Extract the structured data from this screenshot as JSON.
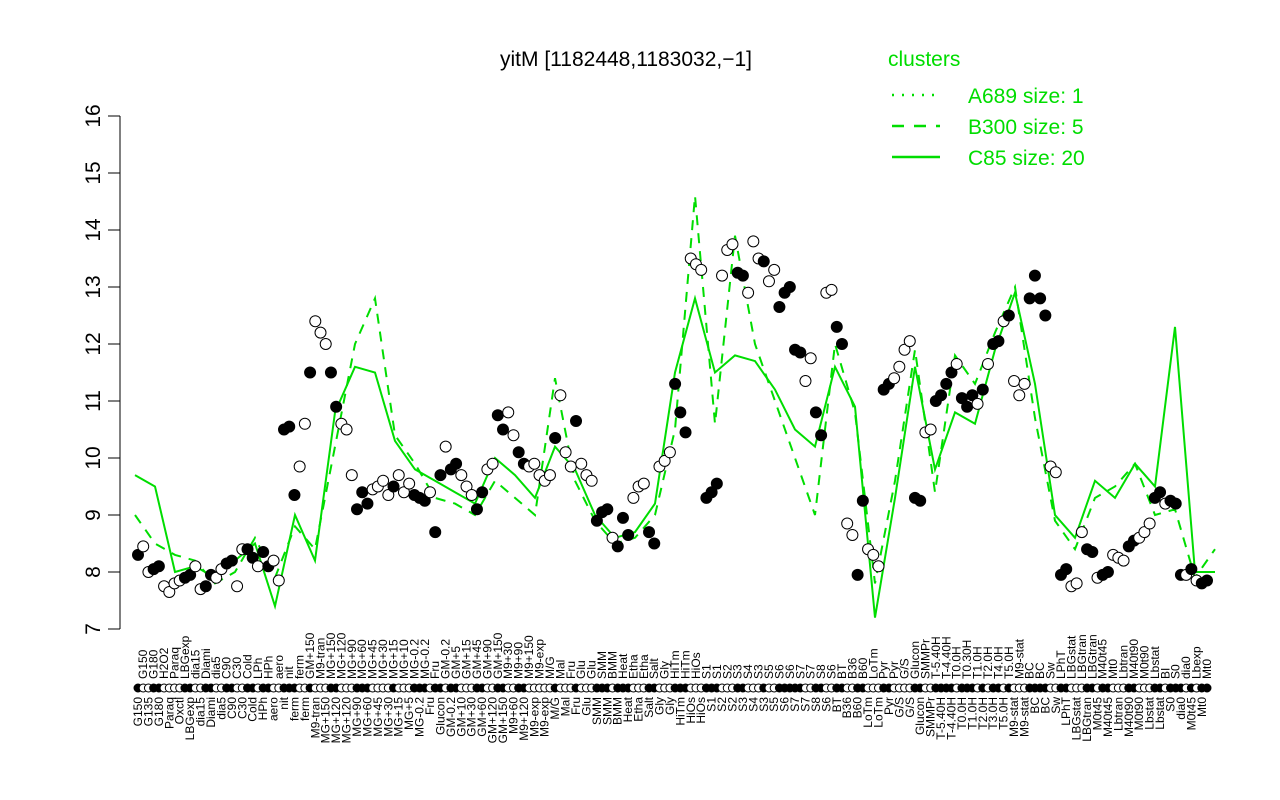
{
  "chart_data": {
    "type": "line",
    "title": "yitM [1182448,1183032,−1]",
    "xlabel": "",
    "ylabel": "",
    "ylim": [
      7,
      16
    ],
    "yticks": [
      7,
      8,
      9,
      10,
      11,
      12,
      13,
      14,
      15,
      16
    ],
    "grid": false,
    "legend": {
      "title": "clusters",
      "placement": "top-right",
      "entries": [
        {
          "name": "A689 size: 1",
          "style": "dotted"
        },
        {
          "name": "B300 size: 5",
          "style": "dashed"
        },
        {
          "name": "C85 size: 20",
          "style": "solid"
        }
      ]
    },
    "color": "#00dd00",
    "points": [
      [
        "G150",
        8.3,
        1
      ],
      [
        "G150",
        8.45,
        0
      ],
      [
        "G135",
        8.0,
        0
      ],
      [
        "G180",
        8.05,
        1
      ],
      [
        "G180",
        8.1,
        1
      ],
      [
        "H2O2",
        7.75,
        0
      ],
      [
        "Paraq",
        7.65,
        0
      ],
      [
        "Paraq",
        7.8,
        0
      ],
      [
        "Oxctl",
        7.85,
        0
      ],
      [
        "LBGexp",
        7.9,
        1
      ],
      [
        "LBGexp",
        7.95,
        1
      ],
      [
        "dia15",
        8.1,
        0
      ],
      [
        "dia15",
        7.7,
        0
      ],
      [
        "Diami",
        7.75,
        1
      ],
      [
        "Diami",
        7.95,
        1
      ],
      [
        "dia5",
        7.9,
        0
      ],
      [
        "dia5",
        8.05,
        0
      ],
      [
        "C90",
        8.15,
        1
      ],
      [
        "C90",
        8.2,
        1
      ],
      [
        "C30",
        7.75,
        0
      ],
      [
        "C30",
        8.4,
        0
      ],
      [
        "Cold",
        8.4,
        1
      ],
      [
        "Cold",
        8.25,
        1
      ],
      [
        "LPh",
        8.1,
        0
      ],
      [
        "HPh",
        8.35,
        1
      ],
      [
        "HPh",
        8.1,
        1
      ],
      [
        "aero",
        8.2,
        0
      ],
      [
        "aero",
        7.85,
        0
      ],
      [
        "nit",
        10.5,
        1
      ],
      [
        "nit",
        10.55,
        1
      ],
      [
        "ferm",
        9.35,
        1
      ],
      [
        "ferm",
        9.85,
        0
      ],
      [
        "ferm",
        10.6,
        0
      ],
      [
        "GM+150",
        11.5,
        1
      ],
      [
        "M9-tran",
        12.4,
        0
      ],
      [
        "M9-tran",
        12.2,
        0
      ],
      [
        "MG+150",
        12.0,
        0
      ],
      [
        "MG+150",
        11.5,
        1
      ],
      [
        "MG+120",
        10.9,
        1
      ],
      [
        "MG+120",
        10.6,
        0
      ],
      [
        "MG+120",
        10.5,
        0
      ],
      [
        "MG+90",
        9.7,
        0
      ],
      [
        "MG+90",
        9.1,
        1
      ],
      [
        "MG+60",
        9.4,
        1
      ],
      [
        "MG+60",
        9.2,
        1
      ],
      [
        "MG+45",
        9.45,
        0
      ],
      [
        "MG+45",
        9.5,
        0
      ],
      [
        "MG+30",
        9.6,
        0
      ],
      [
        "MG+30",
        9.35,
        0
      ],
      [
        "MG+15",
        9.5,
        1
      ],
      [
        "MG+15",
        9.7,
        0
      ],
      [
        "MG+10",
        9.4,
        0
      ],
      [
        "MG+5",
        9.55,
        0
      ],
      [
        "MG-0.2",
        9.35,
        1
      ],
      [
        "MG-0.2",
        9.3,
        1
      ],
      [
        "MG-0.2",
        9.25,
        1
      ],
      [
        "Fru",
        9.4,
        0
      ],
      [
        "Fru",
        8.7,
        1
      ],
      [
        "Glucon",
        9.7,
        1
      ],
      [
        "GM-0.2",
        10.2,
        0
      ],
      [
        "GM-0.2",
        9.8,
        1
      ],
      [
        "GM+5",
        9.9,
        1
      ],
      [
        "GM+10",
        9.7,
        0
      ],
      [
        "GM+15",
        9.5,
        0
      ],
      [
        "GM+30",
        9.35,
        0
      ],
      [
        "GM+45",
        9.1,
        1
      ],
      [
        "GM+60",
        9.4,
        1
      ],
      [
        "GM+90",
        9.8,
        0
      ],
      [
        "GM+120",
        9.9,
        0
      ],
      [
        "GM+150",
        10.75,
        1
      ],
      [
        "GM+150",
        10.5,
        1
      ],
      [
        "M9+30",
        10.8,
        0
      ],
      [
        "M9+60",
        10.4,
        0
      ],
      [
        "M9+90",
        10.1,
        1
      ],
      [
        "M9+120",
        9.9,
        1
      ],
      [
        "M9+150",
        9.85,
        0
      ],
      [
        "M9-exp",
        9.9,
        0
      ],
      [
        "M9-exp",
        9.7,
        0
      ],
      [
        "M9-exp",
        9.6,
        0
      ],
      [
        "M/G",
        9.7,
        0
      ],
      [
        "M/G",
        10.35,
        1
      ],
      [
        "Mal",
        11.1,
        0
      ],
      [
        "Mal",
        10.1,
        0
      ],
      [
        "Fru",
        9.85,
        0
      ],
      [
        "Fru",
        10.65,
        1
      ],
      [
        "Glu",
        9.9,
        0
      ],
      [
        "Glu",
        9.7,
        0
      ],
      [
        "Glu",
        9.6,
        0
      ],
      [
        "SMM",
        8.9,
        1
      ],
      [
        "SMM",
        9.05,
        1
      ],
      [
        "SMM",
        9.1,
        1
      ],
      [
        "BMM",
        8.6,
        0
      ],
      [
        "BMM",
        8.45,
        1
      ],
      [
        "Heat",
        8.95,
        1
      ],
      [
        "Heat",
        8.65,
        1
      ],
      [
        "Etha",
        9.3,
        0
      ],
      [
        "Etha",
        9.5,
        0
      ],
      [
        "Etha",
        9.55,
        0
      ],
      [
        "Salt",
        8.7,
        1
      ],
      [
        "Salt",
        8.5,
        1
      ],
      [
        "Gly",
        9.85,
        0
      ],
      [
        "Gly",
        9.95,
        0
      ],
      [
        "Gly",
        10.1,
        0
      ],
      [
        "HiTm",
        11.3,
        1
      ],
      [
        "HiTm",
        10.8,
        1
      ],
      [
        "HiTm",
        10.45,
        1
      ],
      [
        "HiOs",
        13.5,
        0
      ],
      [
        "HiOs",
        13.4,
        0
      ],
      [
        "HiOs",
        13.3,
        0
      ],
      [
        "S1",
        9.3,
        1
      ],
      [
        "S1",
        9.4,
        1
      ],
      [
        "S1",
        9.55,
        1
      ],
      [
        "S2",
        13.2,
        0
      ],
      [
        "S2",
        13.65,
        0
      ],
      [
        "S2",
        13.75,
        0
      ],
      [
        "S3",
        13.25,
        1
      ],
      [
        "S3",
        13.2,
        1
      ],
      [
        "S4",
        12.9,
        0
      ],
      [
        "S4",
        13.8,
        0
      ],
      [
        "S3",
        13.5,
        0
      ],
      [
        "S3",
        13.45,
        1
      ],
      [
        "S5",
        13.1,
        0
      ],
      [
        "S5",
        13.3,
        0
      ],
      [
        "S6",
        12.65,
        1
      ],
      [
        "S6",
        12.9,
        1
      ],
      [
        "S6",
        13.0,
        1
      ],
      [
        "S7",
        11.9,
        1
      ],
      [
        "S7",
        11.85,
        1
      ],
      [
        "S7",
        11.35,
        0
      ],
      [
        "S7",
        11.75,
        0
      ],
      [
        "S8",
        10.8,
        1
      ],
      [
        "S8",
        10.4,
        1
      ],
      [
        "S6",
        12.9,
        0
      ],
      [
        "S6",
        12.95,
        0
      ],
      [
        "BT",
        12.3,
        1
      ],
      [
        "BT",
        12.0,
        1
      ],
      [
        "B36",
        8.85,
        0
      ],
      [
        "B36",
        8.65,
        0
      ],
      [
        "B60",
        7.95,
        1
      ],
      [
        "B60",
        9.25,
        1
      ],
      [
        "LoTm",
        8.4,
        0
      ],
      [
        "LoTm",
        8.3,
        0
      ],
      [
        "LoTm",
        8.1,
        0
      ],
      [
        "Pyr",
        11.2,
        1
      ],
      [
        "Pyr",
        11.3,
        1
      ],
      [
        "Pyr",
        11.4,
        0
      ],
      [
        "G/S",
        11.6,
        0
      ],
      [
        "G/S",
        11.9,
        0
      ],
      [
        "G/S",
        12.05,
        0
      ],
      [
        "Glucon",
        9.3,
        1
      ],
      [
        "Glucon",
        9.25,
        1
      ],
      [
        "SMMPr",
        10.45,
        0
      ],
      [
        "SMMPr",
        10.5,
        0
      ],
      [
        "T-5.40H",
        11.0,
        1
      ],
      [
        "T-5.40H",
        11.1,
        1
      ],
      [
        "T-4.40H",
        11.3,
        1
      ],
      [
        "T-4.40H",
        11.5,
        1
      ],
      [
        "T0.0H",
        11.65,
        0
      ],
      [
        "T0.0H",
        11.05,
        1
      ],
      [
        "T0.30H",
        10.9,
        1
      ],
      [
        "T1.0H",
        11.1,
        1
      ],
      [
        "T1.0H",
        10.95,
        0
      ],
      [
        "T2.0H",
        11.2,
        1
      ],
      [
        "T2.0H",
        11.65,
        0
      ],
      [
        "T3.0H",
        12.0,
        1
      ],
      [
        "T4.0H",
        12.05,
        1
      ],
      [
        "T5.0H",
        12.4,
        0
      ],
      [
        "T5.0H",
        12.5,
        1
      ],
      [
        "M9-stat",
        11.35,
        0
      ],
      [
        "M9-stat",
        11.1,
        0
      ],
      [
        "M9-stat",
        11.3,
        0
      ],
      [
        "BC",
        12.8,
        1
      ],
      [
        "BC",
        13.2,
        1
      ],
      [
        "BC",
        12.8,
        1
      ],
      [
        "BC",
        12.5,
        1
      ],
      [
        "Sw",
        9.85,
        0
      ],
      [
        "Sw",
        9.75,
        0
      ],
      [
        "LPhT",
        7.95,
        1
      ],
      [
        "LPhT",
        8.05,
        1
      ],
      [
        "LBGstat",
        7.75,
        0
      ],
      [
        "LBGstat",
        7.8,
        0
      ],
      [
        "LBGtran",
        8.7,
        0
      ],
      [
        "LBGtran",
        8.4,
        1
      ],
      [
        "LBGtran",
        8.35,
        1
      ],
      [
        "M0t45",
        7.9,
        0
      ],
      [
        "M40t45",
        7.95,
        1
      ],
      [
        "M40t45",
        8.0,
        1
      ],
      [
        "Mt0",
        8.3,
        0
      ],
      [
        "Lbtran",
        8.25,
        0
      ],
      [
        "Lbtran",
        8.2,
        0
      ],
      [
        "M40t90",
        8.45,
        1
      ],
      [
        "M40t90",
        8.55,
        1
      ],
      [
        "M0t90",
        8.6,
        0
      ],
      [
        "M0t90",
        8.7,
        0
      ],
      [
        "Lbstat",
        8.85,
        0
      ],
      [
        "Lbstat",
        9.3,
        1
      ],
      [
        "Lbstat",
        9.4,
        1
      ],
      [
        "BI",
        9.2,
        0
      ],
      [
        "S0",
        9.25,
        1
      ],
      [
        "S0",
        9.2,
        1
      ],
      [
        "dia0",
        7.95,
        1
      ],
      [
        "dia0",
        7.95,
        0
      ],
      [
        "M0t45",
        8.05,
        1
      ],
      [
        "Lbexp",
        7.85,
        0
      ],
      [
        "Mt0",
        7.8,
        1
      ],
      [
        "Mt0",
        7.85,
        1
      ]
    ],
    "series": [
      {
        "name": "C85 size: 20",
        "style": "solid",
        "values": [
          9.7,
          9.5,
          8.0,
          8.1,
          7.9,
          8.2,
          8.5,
          7.4,
          9.0,
          8.2,
          10.8,
          11.6,
          11.5,
          10.3,
          9.8,
          9.6,
          9.4,
          9.2,
          10.0,
          9.7,
          9.3,
          10.2,
          9.8,
          9.0,
          8.6,
          8.7,
          9.2,
          11.5,
          12.8,
          11.5,
          11.8,
          11.7,
          11.2,
          10.5,
          10.2,
          11.6,
          10.9,
          7.2,
          9.3,
          11.6,
          9.8,
          10.8,
          10.6,
          11.9,
          12.9,
          11.3,
          9.0,
          8.6,
          9.6,
          9.3,
          9.9,
          9.5,
          12.3,
          8.0,
          8.0
        ]
      },
      {
        "name": "B300 size: 5",
        "style": "dashed",
        "values": [
          9.0,
          8.5,
          8.3,
          8.2,
          7.8,
          8.0,
          8.6,
          7.9,
          8.8,
          8.4,
          10.2,
          12.0,
          12.8,
          10.4,
          9.9,
          9.3,
          9.2,
          9.0,
          9.6,
          9.3,
          9.0,
          11.4,
          9.6,
          8.9,
          8.5,
          8.6,
          9.0,
          10.5,
          14.6,
          10.6,
          13.9,
          12.0,
          11.0,
          10.0,
          9.0,
          12.0,
          10.8,
          7.8,
          9.6,
          11.9,
          9.4,
          11.8,
          11.3,
          12.2,
          13.0,
          10.7,
          8.9,
          8.4,
          9.3,
          9.5,
          9.9,
          9.0,
          9.1,
          7.9,
          8.4
        ]
      }
    ]
  }
}
